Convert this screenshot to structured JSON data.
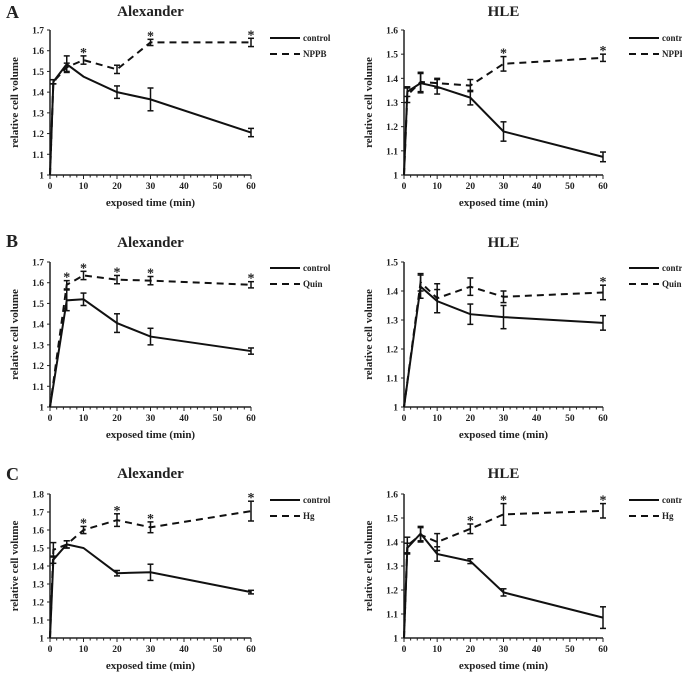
{
  "chart_data": [
    {
      "panel": "A",
      "type": "line",
      "title": "Alexander",
      "xlabel": "exposed time (min)",
      "ylabel": "relative cell volume",
      "xlim": [
        0,
        60
      ],
      "xticks": [
        0,
        10,
        20,
        30,
        40,
        50,
        60
      ],
      "ylim": [
        1,
        1.7
      ],
      "yticks": [
        "1",
        "1.1",
        "1.2",
        "1.3",
        "1.4",
        "1.5",
        "1.6",
        "1.7"
      ],
      "legend": "right",
      "star_label": "*",
      "stars_at": [
        10,
        30,
        60
      ],
      "series": [
        {
          "name": "control",
          "style": "solid",
          "x": [
            0,
            1,
            5,
            10,
            20,
            30,
            60
          ],
          "y": [
            1,
            1.45,
            1.535,
            1.475,
            1.4,
            1.365,
            1.205
          ],
          "err": [
            0,
            0.01,
            0.04,
            0,
            0.03,
            0.055,
            0.02
          ]
        },
        {
          "name": "NPPB",
          "style": "dashed",
          "x": [
            0,
            1,
            5,
            10,
            20,
            30,
            60
          ],
          "y": [
            1,
            1.45,
            1.52,
            1.555,
            1.51,
            1.64,
            1.64
          ],
          "err": [
            0,
            0.01,
            0.02,
            0.02,
            0.02,
            0.015,
            0.02
          ]
        }
      ]
    },
    {
      "panel": "",
      "type": "line",
      "title": "HLE",
      "xlabel": "exposed time (min)",
      "ylabel": "relative cell volume",
      "xlim": [
        0,
        60
      ],
      "xticks": [
        0,
        10,
        20,
        30,
        40,
        50,
        60
      ],
      "ylim": [
        1,
        1.6
      ],
      "yticks": [
        "1",
        "1.1",
        "1.2",
        "1.3",
        "1.4",
        "1.5",
        "1.6"
      ],
      "legend": "right",
      "star_label": "*",
      "stars_at": [
        30,
        60
      ],
      "series": [
        {
          "name": "control",
          "style": "solid",
          "x": [
            0,
            1,
            5,
            10,
            20,
            30,
            60
          ],
          "y": [
            1,
            1.345,
            1.38,
            1.365,
            1.32,
            1.18,
            1.075
          ],
          "err": [
            0,
            0.02,
            0.04,
            0.03,
            0.03,
            0.04,
            0.02
          ]
        },
        {
          "name": "NPPB",
          "style": "dashed",
          "x": [
            0,
            1,
            5,
            10,
            20,
            30,
            60
          ],
          "y": [
            1,
            1.33,
            1.385,
            1.38,
            1.37,
            1.46,
            1.485
          ],
          "err": [
            0,
            0.03,
            0.04,
            0.02,
            0.025,
            0.03,
            0.015
          ]
        }
      ]
    },
    {
      "panel": "B",
      "type": "line",
      "title": "Alexander",
      "xlabel": "exposed time (min)",
      "ylabel": "relative cell volume",
      "xlim": [
        0,
        60
      ],
      "xticks": [
        0,
        10,
        20,
        30,
        40,
        50,
        60
      ],
      "ylim": [
        1,
        1.7
      ],
      "yticks": [
        "1",
        "1.1",
        "1.2",
        "1.3",
        "1.4",
        "1.5",
        "1.6",
        "1.7"
      ],
      "legend": "right",
      "star_label": "*",
      "stars_at": [
        5,
        10,
        20,
        30,
        60
      ],
      "series": [
        {
          "name": "control",
          "style": "solid",
          "x": [
            0,
            5,
            10,
            20,
            30,
            60
          ],
          "y": [
            1,
            1.515,
            1.52,
            1.405,
            1.34,
            1.27
          ],
          "err": [
            0,
            0.05,
            0.03,
            0.045,
            0.04,
            0.015
          ]
        },
        {
          "name": "Quin",
          "style": "dashed",
          "x": [
            0,
            5,
            10,
            20,
            30,
            60
          ],
          "y": [
            1,
            1.59,
            1.635,
            1.615,
            1.61,
            1.59
          ],
          "err": [
            0,
            0.02,
            0.02,
            0.02,
            0.02,
            0.015
          ]
        }
      ]
    },
    {
      "panel": "",
      "type": "line",
      "title": "HLE",
      "xlabel": "exposed time (min)",
      "ylabel": "relative cell volume",
      "xlim": [
        0,
        60
      ],
      "xticks": [
        0,
        10,
        20,
        30,
        40,
        50,
        60
      ],
      "ylim": [
        1,
        1.5
      ],
      "yticks": [
        "1",
        "1.1",
        "1.2",
        "1.3",
        "1.4",
        "1.5"
      ],
      "legend": "right",
      "star_label": "*",
      "stars_at": [
        60
      ],
      "series": [
        {
          "name": "control",
          "style": "solid",
          "x": [
            0,
            5,
            10,
            20,
            30,
            60
          ],
          "y": [
            1,
            1.415,
            1.365,
            1.32,
            1.31,
            1.29
          ],
          "err": [
            0,
            0.04,
            0.04,
            0.035,
            0.04,
            0.025
          ]
        },
        {
          "name": "Quin",
          "style": "dashed",
          "x": [
            0,
            5,
            10,
            20,
            30,
            60
          ],
          "y": [
            1,
            1.43,
            1.375,
            1.415,
            1.38,
            1.395
          ],
          "err": [
            0,
            0.03,
            0.05,
            0.03,
            0.02,
            0.025
          ]
        }
      ]
    },
    {
      "panel": "C",
      "type": "line",
      "title": "Alexander",
      "xlabel": "exposed time (min)",
      "ylabel": "relative cell volume",
      "xlim": [
        0,
        60
      ],
      "xticks": [
        0,
        10,
        20,
        30,
        40,
        50,
        60
      ],
      "ylim": [
        1,
        1.8
      ],
      "yticks": [
        "1",
        "1.1",
        "1.2",
        "1.3",
        "1.4",
        "1.5",
        "1.6",
        "1.7",
        "1.8"
      ],
      "legend": "right",
      "star_label": "*",
      "stars_at": [
        10,
        20,
        30,
        60
      ],
      "series": [
        {
          "name": "control",
          "style": "solid",
          "x": [
            0,
            1,
            5,
            10,
            20,
            30,
            60
          ],
          "y": [
            1,
            1.435,
            1.52,
            1.5,
            1.36,
            1.365,
            1.255
          ],
          "err": [
            0,
            0.02,
            0.02,
            0,
            0.015,
            0.045,
            0.01
          ]
        },
        {
          "name": "Hg",
          "style": "dashed",
          "x": [
            0,
            1,
            5,
            10,
            20,
            30,
            60
          ],
          "y": [
            1,
            1.49,
            1.52,
            1.6,
            1.655,
            1.615,
            1.705
          ],
          "err": [
            0,
            0.04,
            0.02,
            0.02,
            0.035,
            0.03,
            0.055
          ]
        }
      ]
    },
    {
      "panel": "",
      "type": "line",
      "title": "HLE",
      "xlabel": "exposed time (min)",
      "ylabel": "relative cell volume",
      "xlim": [
        0,
        60
      ],
      "xticks": [
        0,
        10,
        20,
        30,
        40,
        50,
        60
      ],
      "ylim": [
        1,
        1.6
      ],
      "yticks": [
        "1",
        "1.1",
        "1.2",
        "1.3",
        "1.4",
        "1.5",
        "1.6"
      ],
      "legend": "right",
      "star_label": "*",
      "stars_at": [
        20,
        30,
        60
      ],
      "series": [
        {
          "name": "control",
          "style": "solid",
          "x": [
            0,
            1,
            5,
            10,
            20,
            30,
            60
          ],
          "y": [
            1,
            1.375,
            1.435,
            1.35,
            1.32,
            1.19,
            1.085
          ],
          "err": [
            0,
            0.02,
            0.03,
            0.03,
            0.01,
            0.015,
            0.045
          ]
        },
        {
          "name": "Hg",
          "style": "dashed",
          "x": [
            0,
            1,
            5,
            10,
            20,
            30,
            60
          ],
          "y": [
            1,
            1.385,
            1.43,
            1.4,
            1.455,
            1.515,
            1.53
          ],
          "err": [
            0,
            0.035,
            0.03,
            0.035,
            0.02,
            0.045,
            0.03
          ]
        }
      ]
    }
  ]
}
